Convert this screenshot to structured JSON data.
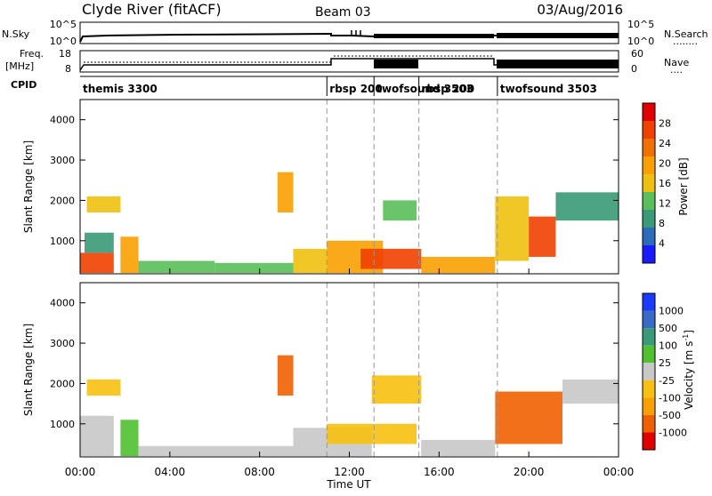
{
  "header": {
    "station": "Clyde River (fitACF)",
    "beam": "Beam 03",
    "date": "03/Aug/2016"
  },
  "colors": {
    "power_scale": [
      "#1a1aff",
      "#2a6cb8",
      "#3a9a78",
      "#5abf5a",
      "#f0c010",
      "#f8a000",
      "#f07000",
      "#f04000",
      "#e00000"
    ],
    "velocity_scale": [
      "#1a3aff",
      "#3a6ac8",
      "#3a9a78",
      "#50c030",
      "#c8c8c8",
      "#f8c010",
      "#f8a000",
      "#f06000",
      "#e00000"
    ]
  },
  "strip_nsky": {
    "left_label": "N.Sky",
    "left_ticks": [
      "10^5",
      "10^0"
    ],
    "right_ticks": [
      "10^5",
      "10^0"
    ],
    "right_label": "N.Search",
    "right_legend_line": "........"
  },
  "strip_freq": {
    "left_label_line1": "Freq.",
    "left_label_line2": "[MHz]",
    "left_ticks": [
      "18",
      "8"
    ],
    "right_ticks": [
      "60",
      "0"
    ],
    "right_label": "Nave",
    "right_legend_line": "...."
  },
  "strip_cpid": {
    "label": "CPID",
    "segments": [
      {
        "start_hour": 0,
        "name": "themis 3300"
      },
      {
        "start_hour": 11.0,
        "name": "rbsp 200"
      },
      {
        "start_hour": 13.1,
        "name": "twofsound 3503"
      },
      {
        "start_hour": 15.1,
        "name": "rbsp 200"
      },
      {
        "start_hour": 18.6,
        "name": "twofsound 3503"
      }
    ]
  },
  "panels": {
    "y_label": "Slant Range [km]",
    "y_ticks": [
      "4000",
      "3000",
      "2000",
      "1000"
    ],
    "x_ticks": [
      "00:00",
      "04:00",
      "08:00",
      "12:00",
      "16:00",
      "20:00",
      "00:00"
    ],
    "x_label": "Time UT"
  },
  "power_bar": {
    "label": "Power [dB]",
    "ticks": [
      "28",
      "24",
      "20",
      "16",
      "12",
      "8",
      "4"
    ]
  },
  "velocity_bar": {
    "label_main": "Velocity [m s",
    "label_sup": "-1",
    "label_end": "]",
    "ticks": [
      "1000",
      "500",
      "100",
      "25",
      "-25",
      "-100",
      "-500",
      "-1000"
    ]
  },
  "chart_data": [
    {
      "type": "heatmap",
      "title": "Power",
      "xlabel": "Time UT",
      "ylabel": "Slant Range [km]",
      "xlim": [
        0,
        24
      ],
      "ylim": [
        180,
        4500
      ],
      "colorbar_label": "Power [dB]",
      "colorbar_range": [
        0,
        32
      ],
      "cells": [
        {
          "t0": 0.0,
          "t1": 1.5,
          "r0": 200,
          "r1": 700,
          "value": 26
        },
        {
          "t0": 0.2,
          "t1": 1.5,
          "r0": 700,
          "r1": 1200,
          "value": 10
        },
        {
          "t0": 0.3,
          "t1": 1.8,
          "r0": 1700,
          "r1": 2100,
          "value": 16
        },
        {
          "t0": 1.8,
          "t1": 2.6,
          "r0": 200,
          "r1": 1100,
          "value": 20
        },
        {
          "t0": 2.6,
          "t1": 6.0,
          "r0": 200,
          "r1": 500,
          "value": 12
        },
        {
          "t0": 6.0,
          "t1": 9.5,
          "r0": 200,
          "r1": 450,
          "value": 14
        },
        {
          "t0": 8.8,
          "t1": 9.5,
          "r0": 1700,
          "r1": 2700,
          "value": 18
        },
        {
          "t0": 9.5,
          "t1": 11.0,
          "r0": 200,
          "r1": 800,
          "value": 16
        },
        {
          "t0": 11.0,
          "t1": 13.5,
          "r0": 200,
          "r1": 1000,
          "value": 20
        },
        {
          "t0": 12.5,
          "t1": 15.2,
          "r0": 300,
          "r1": 800,
          "value": 28
        },
        {
          "t0": 13.5,
          "t1": 15.0,
          "r0": 1500,
          "r1": 2000,
          "value": 14
        },
        {
          "t0": 15.2,
          "t1": 18.5,
          "r0": 200,
          "r1": 600,
          "value": 20
        },
        {
          "t0": 18.5,
          "t1": 20.0,
          "r0": 500,
          "r1": 2100,
          "value": 16
        },
        {
          "t0": 20.0,
          "t1": 21.2,
          "r0": 600,
          "r1": 1600,
          "value": 26
        },
        {
          "t0": 21.2,
          "t1": 24.0,
          "r0": 1500,
          "r1": 2200,
          "value": 10
        }
      ]
    },
    {
      "type": "heatmap",
      "title": "Velocity",
      "xlabel": "Time UT",
      "ylabel": "Slant Range [km]",
      "xlim": [
        0,
        24
      ],
      "ylim": [
        180,
        4500
      ],
      "colorbar_label": "Velocity [m s-1]",
      "colorbar_range": [
        -1000,
        1000
      ],
      "cells": [
        {
          "t0": 0.0,
          "t1": 1.5,
          "r0": 200,
          "r1": 1200,
          "value": 0
        },
        {
          "t0": 0.3,
          "t1": 1.8,
          "r0": 1700,
          "r1": 2100,
          "value": -300
        },
        {
          "t0": 1.8,
          "t1": 2.6,
          "r0": 200,
          "r1": 1100,
          "value": 200
        },
        {
          "t0": 2.6,
          "t1": 9.5,
          "r0": 200,
          "r1": 450,
          "value": -60
        },
        {
          "t0": 8.8,
          "t1": 9.5,
          "r0": 1700,
          "r1": 2700,
          "value": -600
        },
        {
          "t0": 9.5,
          "t1": 13.0,
          "r0": 200,
          "r1": 900,
          "value": -80
        },
        {
          "t0": 11.0,
          "t1": 15.0,
          "r0": 500,
          "r1": 1000,
          "value": -300
        },
        {
          "t0": 13.0,
          "t1": 15.2,
          "r0": 1500,
          "r1": 2200,
          "value": -300
        },
        {
          "t0": 15.2,
          "t1": 18.5,
          "r0": 200,
          "r1": 600,
          "value": -80
        },
        {
          "t0": 18.5,
          "t1": 21.5,
          "r0": 500,
          "r1": 1800,
          "value": -700
        },
        {
          "t0": 21.5,
          "t1": 24.0,
          "r0": 1500,
          "r1": 2100,
          "value": 10
        }
      ]
    }
  ]
}
